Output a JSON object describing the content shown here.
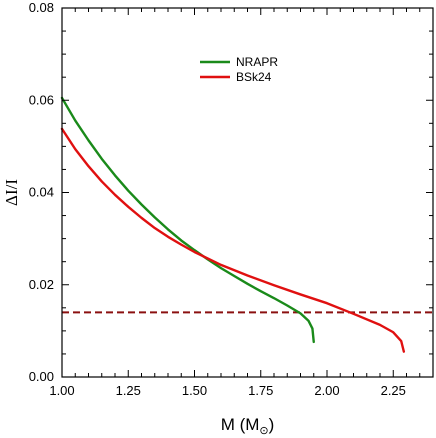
{
  "chart_data": {
    "type": "line",
    "xlabel": "M (M",
    "xlabel_sub": "⊙",
    "xlabel_close": ")",
    "ylabel": "ΔI/I",
    "xlim": [
      1.0,
      2.4
    ],
    "ylim": [
      0.0,
      0.08
    ],
    "x_ticks": [
      1.0,
      1.25,
      1.5,
      1.75,
      2.0,
      2.25
    ],
    "x_tick_labels": [
      "1.00",
      "1.25",
      "1.50",
      "1.75",
      "2.00",
      "2.25"
    ],
    "y_ticks": [
      0.0,
      0.02,
      0.04,
      0.06,
      0.08
    ],
    "y_tick_labels": [
      "0.00",
      "0.02",
      "0.04",
      "0.06",
      "0.08"
    ],
    "legend_position": "top-center",
    "grid": false,
    "series": [
      {
        "name": "NRAPR",
        "color": "#1a8a1a",
        "x": [
          1.0,
          1.05,
          1.1,
          1.15,
          1.2,
          1.25,
          1.3,
          1.35,
          1.4,
          1.45,
          1.5,
          1.55,
          1.6,
          1.65,
          1.7,
          1.75,
          1.8,
          1.85,
          1.9,
          1.93,
          1.945,
          1.95
        ],
        "y": [
          0.0605,
          0.0556,
          0.0513,
          0.0473,
          0.0437,
          0.0404,
          0.0374,
          0.0346,
          0.032,
          0.0296,
          0.0275,
          0.0255,
          0.0236,
          0.0219,
          0.0202,
          0.0186,
          0.0171,
          0.0155,
          0.0138,
          0.0122,
          0.0105,
          0.0076
        ]
      },
      {
        "name": "BSk24",
        "color": "#e01010",
        "x": [
          1.0,
          1.05,
          1.1,
          1.15,
          1.2,
          1.25,
          1.3,
          1.35,
          1.4,
          1.45,
          1.5,
          1.6,
          1.7,
          1.8,
          1.9,
          2.0,
          2.1,
          2.2,
          2.25,
          2.28,
          2.29
        ],
        "y": [
          0.0538,
          0.0494,
          0.0457,
          0.0424,
          0.0395,
          0.0369,
          0.0345,
          0.0323,
          0.0304,
          0.0287,
          0.0271,
          0.0243,
          0.022,
          0.0199,
          0.0179,
          0.016,
          0.0137,
          0.0113,
          0.0097,
          0.0078,
          0.0055
        ]
      }
    ],
    "hlines": [
      {
        "y": 0.014,
        "color": "#8b1010",
        "style": "dashed"
      }
    ]
  }
}
